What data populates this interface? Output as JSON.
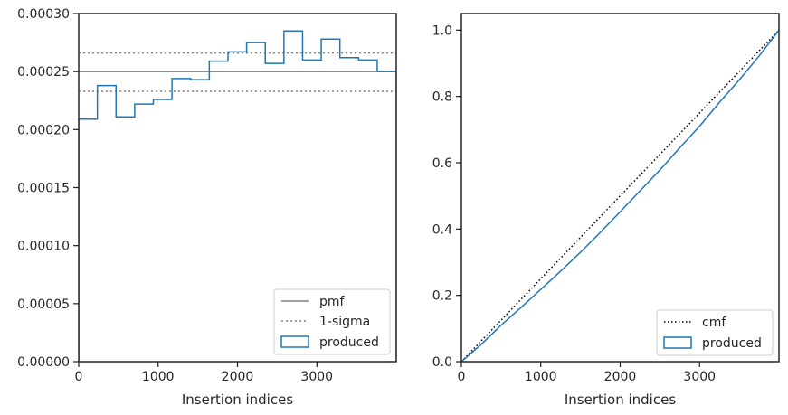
{
  "chart_data": [
    {
      "type": "histogram-step",
      "xlabel": "Insertion indices",
      "ylabel": "",
      "xlim": [
        0,
        4000
      ],
      "ylim": [
        0,
        0.0003
      ],
      "xticks": [
        0,
        1000,
        2000,
        3000
      ],
      "xtick_labels": [
        "0",
        "1000",
        "2000",
        "3000"
      ],
      "yticks": [
        0,
        5e-05,
        0.0001,
        0.00015,
        0.0002,
        0.00025,
        0.0003
      ],
      "ytick_labels": [
        "0.00000",
        "0.00005",
        "0.00010",
        "0.00015",
        "0.00020",
        "0.00025",
        "0.00030"
      ],
      "bin_edges": [
        0,
        235,
        470,
        705,
        940,
        1175,
        1410,
        1645,
        1880,
        2115,
        2350,
        2585,
        2820,
        3055,
        3290,
        3525,
        3760,
        4000
      ],
      "bin_values": [
        0.000209,
        0.000238,
        0.000211,
        0.000222,
        0.000226,
        0.000244,
        0.000243,
        0.000259,
        0.000267,
        0.000275,
        0.000257,
        0.000285,
        0.00026,
        0.000278,
        0.000262,
        0.00026,
        0.00025
      ],
      "pmf": 0.00025,
      "sigma_band": [
        0.000233,
        0.000266
      ],
      "legend": {
        "position": "lower-right",
        "entries": [
          "pmf",
          "1-sigma",
          "produced"
        ]
      },
      "colors": {
        "produced": "#1f77b4",
        "pmf": "#7f7f7f",
        "sigma": "#7f7f7f"
      }
    },
    {
      "type": "line",
      "xlabel": "Insertion indices",
      "ylabel": "",
      "xlim": [
        0,
        4000
      ],
      "ylim": [
        0,
        1.05
      ],
      "xticks": [
        0,
        1000,
        2000,
        3000
      ],
      "xtick_labels": [
        "0",
        "1000",
        "2000",
        "3000"
      ],
      "yticks": [
        0,
        0.2,
        0.4,
        0.6,
        0.8,
        1.0
      ],
      "ytick_labels": [
        "0.0",
        "0.2",
        "0.4",
        "0.6",
        "0.8",
        "1.0"
      ],
      "series": [
        {
          "name": "cmf",
          "style": "dotted",
          "color": "#000000",
          "x": [
            0,
            4000
          ],
          "y": [
            0,
            1.0
          ]
        },
        {
          "name": "produced",
          "style": "solid",
          "color": "#1f77b4",
          "x": [
            0,
            250,
            500,
            750,
            1000,
            1250,
            1500,
            1750,
            2000,
            2250,
            2500,
            2750,
            3000,
            3250,
            3500,
            3750,
            4000
          ],
          "y": [
            0,
            0.052,
            0.11,
            0.163,
            0.218,
            0.273,
            0.33,
            0.39,
            0.452,
            0.515,
            0.578,
            0.645,
            0.71,
            0.782,
            0.85,
            0.922,
            1.0
          ]
        }
      ],
      "legend": {
        "position": "lower-right",
        "entries": [
          "cmf",
          "produced"
        ]
      }
    }
  ]
}
